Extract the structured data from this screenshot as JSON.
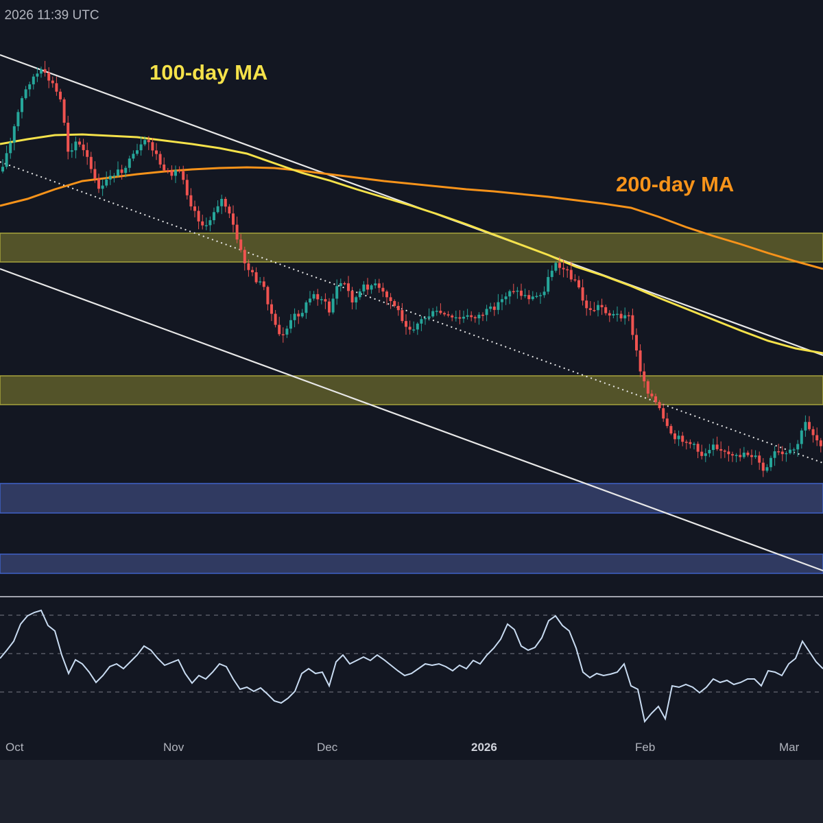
{
  "header": {
    "timestamp": ", 2026 11:39 UTC"
  },
  "colors": {
    "background": "#131722",
    "ma100": "#f5e24a",
    "ma200": "#f7931a",
    "candle_up": "#26a69a",
    "candle_down": "#ef5350",
    "trendline": "#ffffff",
    "resistance_zone": "#6b6b2e",
    "support_zone": "#3a4a78",
    "rsi_line": "#c9dcf2"
  },
  "chart_data": {
    "type": "candlestick",
    "x_ticks": [
      {
        "label": "Oct",
        "bold": false
      },
      {
        "label": "Nov",
        "bold": false
      },
      {
        "label": "Dec",
        "bold": false
      },
      {
        "label": "2026",
        "bold": true
      },
      {
        "label": "Feb",
        "bold": false
      },
      {
        "label": "Mar",
        "bold": false
      }
    ],
    "ma_labels": {
      "ma100": "100-day MA",
      "ma200": "200-day MA"
    },
    "ma100_curve": [
      [
        0,
        210
      ],
      [
        40,
        203
      ],
      [
        80,
        197
      ],
      [
        120,
        196
      ],
      [
        160,
        198
      ],
      [
        200,
        200
      ],
      [
        240,
        205
      ],
      [
        280,
        210
      ],
      [
        320,
        216
      ],
      [
        360,
        224
      ],
      [
        400,
        238
      ],
      [
        440,
        252
      ],
      [
        480,
        263
      ],
      [
        520,
        276
      ],
      [
        560,
        288
      ],
      [
        600,
        300
      ],
      [
        640,
        313
      ],
      [
        680,
        327
      ],
      [
        720,
        342
      ],
      [
        760,
        357
      ],
      [
        800,
        372
      ],
      [
        840,
        389
      ],
      [
        880,
        402
      ],
      [
        920,
        417
      ],
      [
        960,
        434
      ],
      [
        1000,
        450
      ],
      [
        1040,
        466
      ],
      [
        1080,
        482
      ],
      [
        1120,
        497
      ],
      [
        1160,
        508
      ],
      [
        1200,
        515
      ]
    ],
    "ma200_curve": [
      [
        0,
        300
      ],
      [
        40,
        290
      ],
      [
        80,
        276
      ],
      [
        120,
        264
      ],
      [
        160,
        259
      ],
      [
        200,
        254
      ],
      [
        240,
        250
      ],
      [
        280,
        247
      ],
      [
        320,
        245
      ],
      [
        360,
        244
      ],
      [
        400,
        245
      ],
      [
        440,
        249
      ],
      [
        480,
        254
      ],
      [
        520,
        259
      ],
      [
        560,
        264
      ],
      [
        600,
        268
      ],
      [
        640,
        272
      ],
      [
        680,
        276
      ],
      [
        720,
        279
      ],
      [
        760,
        283
      ],
      [
        800,
        287
      ],
      [
        840,
        292
      ],
      [
        880,
        297
      ],
      [
        920,
        303
      ],
      [
        960,
        316
      ],
      [
        1000,
        331
      ],
      [
        1040,
        344
      ],
      [
        1080,
        356
      ],
      [
        1120,
        369
      ],
      [
        1160,
        381
      ],
      [
        1200,
        392
      ]
    ],
    "close_path": [
      [
        0,
        250
      ],
      [
        15,
        210
      ],
      [
        30,
        150
      ],
      [
        45,
        115
      ],
      [
        60,
        105
      ],
      [
        75,
        120
      ],
      [
        90,
        150
      ],
      [
        100,
        225
      ],
      [
        110,
        205
      ],
      [
        125,
        225
      ],
      [
        140,
        270
      ],
      [
        150,
        275
      ],
      [
        160,
        255
      ],
      [
        175,
        250
      ],
      [
        190,
        235
      ],
      [
        205,
        215
      ],
      [
        215,
        205
      ],
      [
        230,
        230
      ],
      [
        240,
        255
      ],
      [
        255,
        250
      ],
      [
        265,
        250
      ],
      [
        275,
        290
      ],
      [
        290,
        320
      ],
      [
        300,
        335
      ],
      [
        315,
        300
      ],
      [
        325,
        290
      ],
      [
        340,
        330
      ],
      [
        350,
        365
      ],
      [
        360,
        390
      ],
      [
        375,
        410
      ],
      [
        385,
        420
      ],
      [
        395,
        455
      ],
      [
        405,
        490
      ],
      [
        415,
        485
      ],
      [
        430,
        460
      ],
      [
        440,
        455
      ],
      [
        455,
        430
      ],
      [
        470,
        435
      ],
      [
        480,
        455
      ],
      [
        490,
        420
      ],
      [
        500,
        410
      ],
      [
        515,
        440
      ],
      [
        530,
        420
      ],
      [
        545,
        415
      ],
      [
        560,
        430
      ],
      [
        575,
        445
      ],
      [
        590,
        470
      ],
      [
        600,
        480
      ],
      [
        610,
        470
      ],
      [
        625,
        460
      ],
      [
        640,
        455
      ],
      [
        655,
        465
      ],
      [
        670,
        465
      ],
      [
        685,
        462
      ],
      [
        700,
        460
      ],
      [
        715,
        452
      ],
      [
        730,
        440
      ],
      [
        745,
        420
      ],
      [
        760,
        430
      ],
      [
        775,
        435
      ],
      [
        790,
        430
      ],
      [
        800,
        405
      ],
      [
        810,
        380
      ],
      [
        825,
        395
      ],
      [
        840,
        410
      ],
      [
        850,
        440
      ],
      [
        860,
        455
      ],
      [
        875,
        445
      ],
      [
        890,
        460
      ],
      [
        905,
        460
      ],
      [
        915,
        455
      ],
      [
        925,
        500
      ],
      [
        935,
        545
      ],
      [
        945,
        570
      ],
      [
        960,
        595
      ],
      [
        970,
        620
      ],
      [
        980,
        640
      ],
      [
        995,
        640
      ],
      [
        1010,
        650
      ],
      [
        1025,
        665
      ],
      [
        1040,
        645
      ],
      [
        1055,
        660
      ],
      [
        1070,
        670
      ],
      [
        1085,
        660
      ],
      [
        1100,
        665
      ],
      [
        1115,
        690
      ],
      [
        1130,
        660
      ],
      [
        1145,
        665
      ],
      [
        1160,
        655
      ],
      [
        1175,
        615
      ],
      [
        1190,
        640
      ],
      [
        1200,
        650
      ]
    ],
    "rsi_path": [
      [
        0,
        960
      ],
      [
        10,
        948
      ],
      [
        20,
        935
      ],
      [
        30,
        910
      ],
      [
        40,
        898
      ],
      [
        50,
        893
      ],
      [
        60,
        890
      ],
      [
        70,
        912
      ],
      [
        80,
        920
      ],
      [
        90,
        955
      ],
      [
        100,
        982
      ],
      [
        110,
        962
      ],
      [
        120,
        968
      ],
      [
        130,
        980
      ],
      [
        140,
        995
      ],
      [
        150,
        985
      ],
      [
        160,
        972
      ],
      [
        170,
        968
      ],
      [
        180,
        975
      ],
      [
        190,
        965
      ],
      [
        200,
        955
      ],
      [
        210,
        942
      ],
      [
        220,
        948
      ],
      [
        230,
        960
      ],
      [
        240,
        970
      ],
      [
        250,
        966
      ],
      [
        260,
        962
      ],
      [
        270,
        982
      ],
      [
        280,
        996
      ],
      [
        290,
        985
      ],
      [
        300,
        990
      ],
      [
        310,
        980
      ],
      [
        320,
        968
      ],
      [
        330,
        972
      ],
      [
        340,
        990
      ],
      [
        350,
        1005
      ],
      [
        360,
        1002
      ],
      [
        370,
        1008
      ],
      [
        380,
        1003
      ],
      [
        390,
        1012
      ],
      [
        400,
        1022
      ],
      [
        410,
        1025
      ],
      [
        420,
        1018
      ],
      [
        430,
        1008
      ],
      [
        440,
        982
      ],
      [
        450,
        975
      ],
      [
        460,
        982
      ],
      [
        470,
        980
      ],
      [
        480,
        1000
      ],
      [
        490,
        965
      ],
      [
        500,
        955
      ],
      [
        510,
        968
      ],
      [
        520,
        963
      ],
      [
        530,
        958
      ],
      [
        540,
        963
      ],
      [
        550,
        955
      ],
      [
        560,
        962
      ],
      [
        570,
        970
      ],
      [
        580,
        978
      ],
      [
        590,
        985
      ],
      [
        600,
        982
      ],
      [
        610,
        975
      ],
      [
        620,
        968
      ],
      [
        630,
        970
      ],
      [
        640,
        968
      ],
      [
        650,
        972
      ],
      [
        660,
        978
      ],
      [
        670,
        970
      ],
      [
        680,
        975
      ],
      [
        690,
        963
      ],
      [
        700,
        968
      ],
      [
        710,
        955
      ],
      [
        720,
        945
      ],
      [
        730,
        932
      ],
      [
        740,
        910
      ],
      [
        750,
        918
      ],
      [
        760,
        942
      ],
      [
        770,
        948
      ],
      [
        780,
        944
      ],
      [
        790,
        930
      ],
      [
        800,
        905
      ],
      [
        810,
        898
      ],
      [
        820,
        912
      ],
      [
        830,
        920
      ],
      [
        840,
        945
      ],
      [
        850,
        980
      ],
      [
        860,
        988
      ],
      [
        870,
        982
      ],
      [
        880,
        985
      ],
      [
        890,
        983
      ],
      [
        900,
        980
      ],
      [
        910,
        968
      ],
      [
        920,
        1000
      ],
      [
        930,
        1005
      ],
      [
        940,
        1052
      ],
      [
        950,
        1040
      ],
      [
        960,
        1030
      ],
      [
        970,
        1048
      ],
      [
        980,
        1000
      ],
      [
        990,
        1002
      ],
      [
        1000,
        998
      ],
      [
        1010,
        1002
      ],
      [
        1020,
        1010
      ],
      [
        1030,
        1002
      ],
      [
        1040,
        990
      ],
      [
        1050,
        995
      ],
      [
        1060,
        992
      ],
      [
        1070,
        998
      ],
      [
        1080,
        995
      ],
      [
        1090,
        990
      ],
      [
        1100,
        990
      ],
      [
        1110,
        1000
      ],
      [
        1120,
        978
      ],
      [
        1130,
        980
      ],
      [
        1140,
        985
      ],
      [
        1150,
        968
      ],
      [
        1160,
        960
      ],
      [
        1170,
        935
      ],
      [
        1180,
        950
      ],
      [
        1190,
        965
      ],
      [
        1200,
        975
      ]
    ],
    "zones": [
      {
        "kind": "resistance",
        "y_top": 340,
        "y_bottom": 382
      },
      {
        "kind": "resistance",
        "y_top": 548,
        "y_bottom": 590
      },
      {
        "kind": "support",
        "y_top": 705,
        "y_bottom": 748
      },
      {
        "kind": "support",
        "y_top": 808,
        "y_bottom": 836
      }
    ],
    "rsi_levels": [
      70,
      50,
      30
    ],
    "grid": false,
    "legend": "none"
  }
}
